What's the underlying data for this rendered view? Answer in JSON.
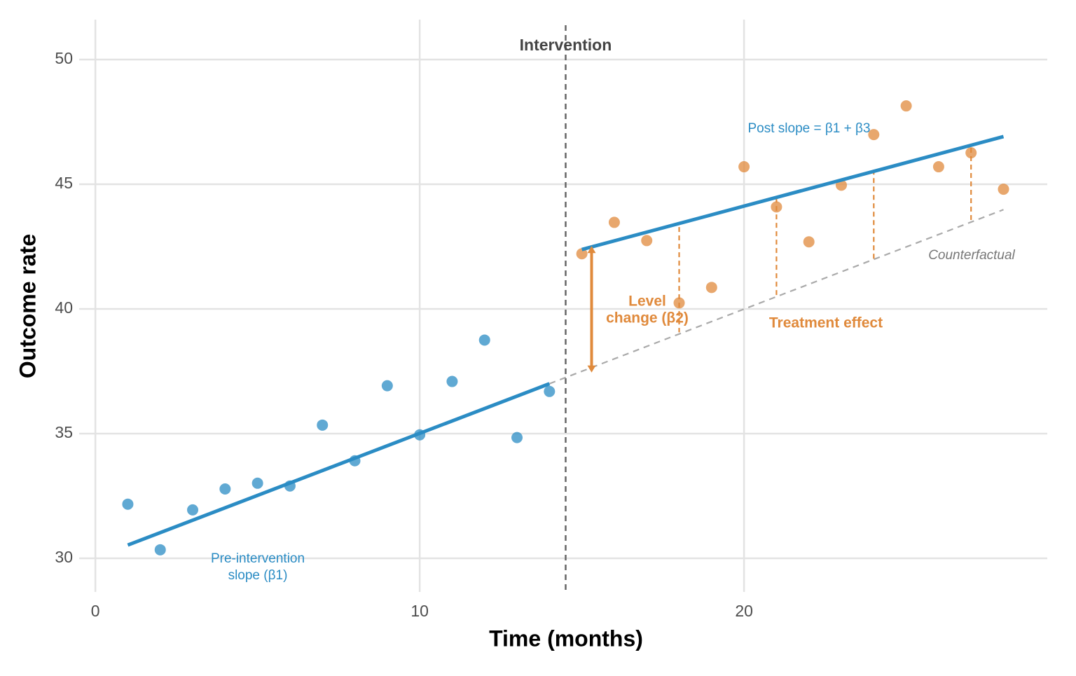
{
  "chart_data": {
    "type": "scatter",
    "x_label": "Time (months)",
    "y_label": "Outcome rate",
    "xlim": [
      -0.5,
      29.35
    ],
    "ylim": [
      28.65,
      51.6
    ],
    "xticks": [
      0,
      10,
      20
    ],
    "yticks": [
      30,
      35,
      40,
      45,
      50
    ],
    "grid": true,
    "series": [
      {
        "color": "#2b8cc4",
        "x": [
          1,
          2,
          3,
          4,
          5,
          6,
          7,
          8,
          9,
          10,
          11,
          12,
          13,
          14
        ],
        "values": [
          32.17,
          30.34,
          31.94,
          32.78,
          33.01,
          32.9,
          35.34,
          33.91,
          36.92,
          34.95,
          37.09,
          38.75,
          34.84,
          36.69
        ]
      },
      {
        "color": "#e08a3c",
        "x": [
          15,
          16,
          17,
          18,
          19,
          20,
          21,
          22,
          23,
          24,
          25,
          26,
          27,
          28
        ],
        "values": [
          42.21,
          43.47,
          42.74,
          40.24,
          40.86,
          45.7,
          44.09,
          42.69,
          44.96,
          46.99,
          48.14,
          45.7,
          46.26,
          44.8
        ]
      }
    ],
    "fit_lines": [
      {
        "color": "#2b8cc4",
        "x": [
          1,
          14
        ],
        "values": [
          30.53,
          37.0
        ]
      },
      {
        "color": "#2b8cc4",
        "x": [
          15,
          28
        ],
        "values": [
          42.38,
          46.91
        ]
      }
    ],
    "counterfactual": {
      "label": "Counterfactual",
      "color": "#aaaaaa",
      "x": [
        14,
        28
      ],
      "values": [
        37.0,
        43.98
      ]
    },
    "intervention": {
      "label": "Intervention",
      "x": 14.5,
      "color": "#666666"
    },
    "level_change": {
      "lines": [
        "Level",
        "change (β2)"
      ],
      "color": "#e08a3c",
      "x": 15.3,
      "values": [
        42.52,
        37.45
      ]
    },
    "treatment_effect": {
      "label": "Treatment effect",
      "color": "#e08a3c",
      "x": [
        18,
        21,
        24,
        27
      ],
      "top": [
        43.28,
        44.46,
        45.58,
        46.46
      ],
      "bottom": [
        39.06,
        40.46,
        42.0,
        43.47
      ]
    },
    "annotations": [
      {
        "lines": [
          "Pre-intervention",
          "slope (β1)"
        ],
        "color": "#2b8cc4"
      },
      {
        "lines": [
          "Post slope = β1 + β3"
        ],
        "color": "#2b8cc4"
      }
    ]
  }
}
